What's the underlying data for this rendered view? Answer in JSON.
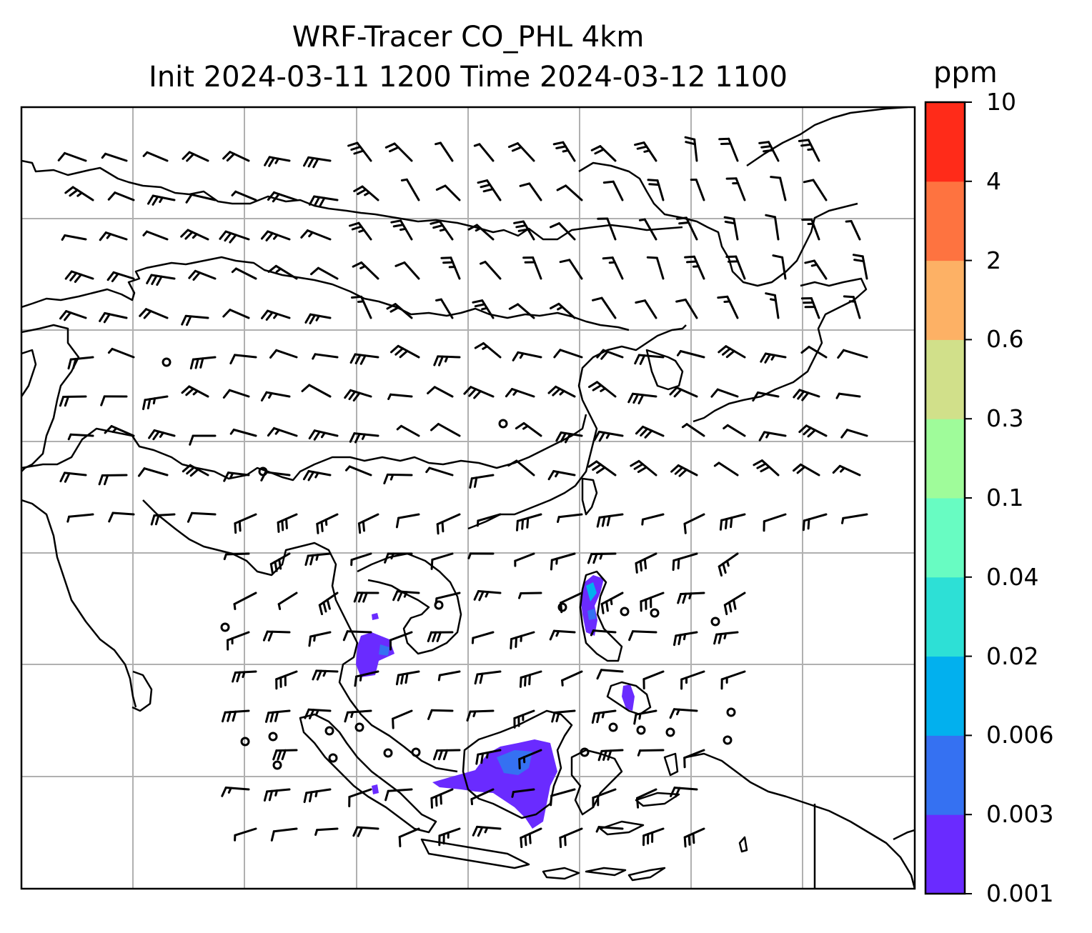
{
  "title": {
    "line1": "WRF-Tracer CO_PHL 4km",
    "line2": "Init 2024-03-11 1200 Time 2024-03-12 1100"
  },
  "colorbar": {
    "unit": "ppm",
    "levels": [
      "0.001",
      "0.003",
      "0.006",
      "0.02",
      "0.04",
      "0.1",
      "0.3",
      "0.6",
      "2",
      "4",
      "10"
    ],
    "colors": [
      "#6a2bff",
      "#3571f2",
      "#02b0ee",
      "#2de0d6",
      "#68fcc2",
      "#9ffc9a",
      "#d1e08a",
      "#fdb165",
      "#fe7340",
      "#ff2b19"
    ]
  },
  "map": {
    "projection": "Lambert conformal (regional domain, Southeast/East Asia)",
    "gridlines": true,
    "coastline_color": "#000000",
    "gridline_color": "#b0b0b0",
    "tracer_fill_levels": [
      "0.001",
      "0.003",
      "0.006",
      "0.02"
    ],
    "wind_barbs": "black barbs over domain; circles denote calm"
  }
}
